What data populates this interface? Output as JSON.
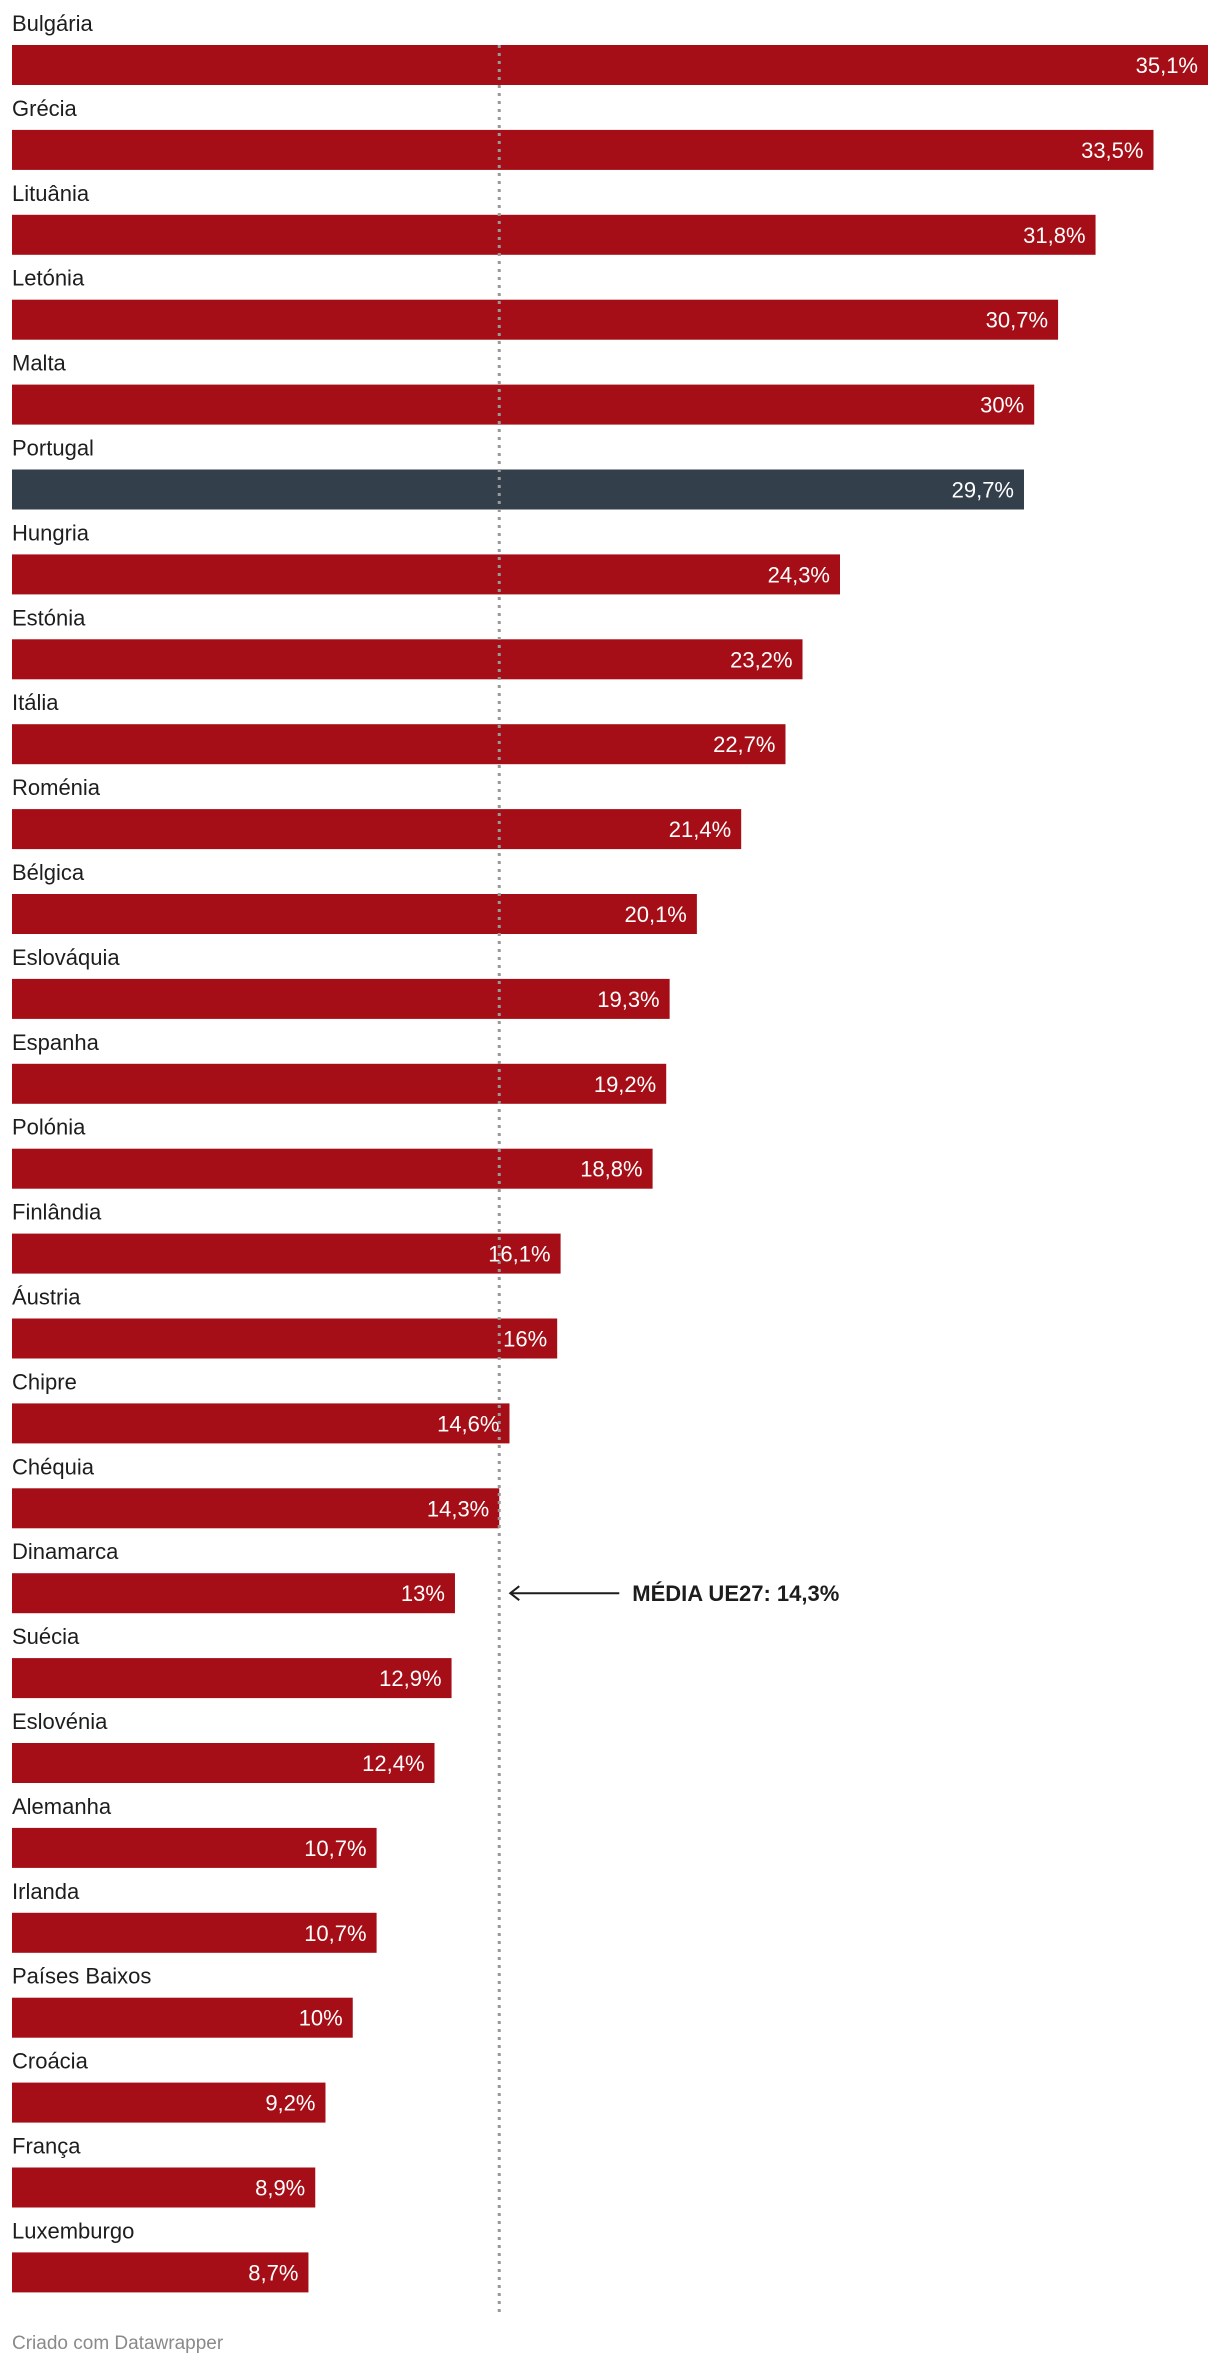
{
  "chart_data": {
    "type": "bar",
    "orientation": "horizontal",
    "categories": [
      "Bulgária",
      "Grécia",
      "Lituânia",
      "Letónia",
      "Malta",
      "Portugal",
      "Hungria",
      "Estónia",
      "Itália",
      "Roménia",
      "Bélgica",
      "Eslováquia",
      "Espanha",
      "Polónia",
      "Finlândia",
      "Áustria",
      "Chipre",
      "Chéquia",
      "Dinamarca",
      "Suécia",
      "Eslovénia",
      "Alemanha",
      "Irlanda",
      "Países Baixos",
      "Croácia",
      "França",
      "Luxemburgo"
    ],
    "values": [
      35.1,
      33.5,
      31.8,
      30.7,
      30,
      29.7,
      24.3,
      23.2,
      22.7,
      21.4,
      20.1,
      19.3,
      19.2,
      18.8,
      16.1,
      16,
      14.6,
      14.3,
      13,
      12.9,
      12.4,
      10.7,
      10.7,
      10,
      9.2,
      8.9,
      8.7
    ],
    "value_labels": [
      "35,1%",
      "33,5%",
      "31,8%",
      "30,7%",
      "30%",
      "29,7%",
      "24,3%",
      "23,2%",
      "22,7%",
      "21,4%",
      "20,1%",
      "19,3%",
      "19,2%",
      "18,8%",
      "16,1%",
      "16%",
      "14,6%",
      "14,3%",
      "13%",
      "12,9%",
      "12,4%",
      "10,7%",
      "10,7%",
      "10%",
      "9,2%",
      "8,9%",
      "8,7%"
    ],
    "highlight": "Portugal",
    "colors": {
      "bar": "#a50e16",
      "highlight": "#333f4b",
      "reference_line": "#999999",
      "text": "#1d1d1d",
      "footer": "#8a8a8a"
    },
    "reference_line": {
      "value": 14.3,
      "label": "MÉDIA UE27: 14,3%"
    },
    "xlim": [
      0,
      35.1
    ],
    "grid": false,
    "legend": "none"
  },
  "footer": {
    "credit": "Criado com Datawrapper"
  }
}
